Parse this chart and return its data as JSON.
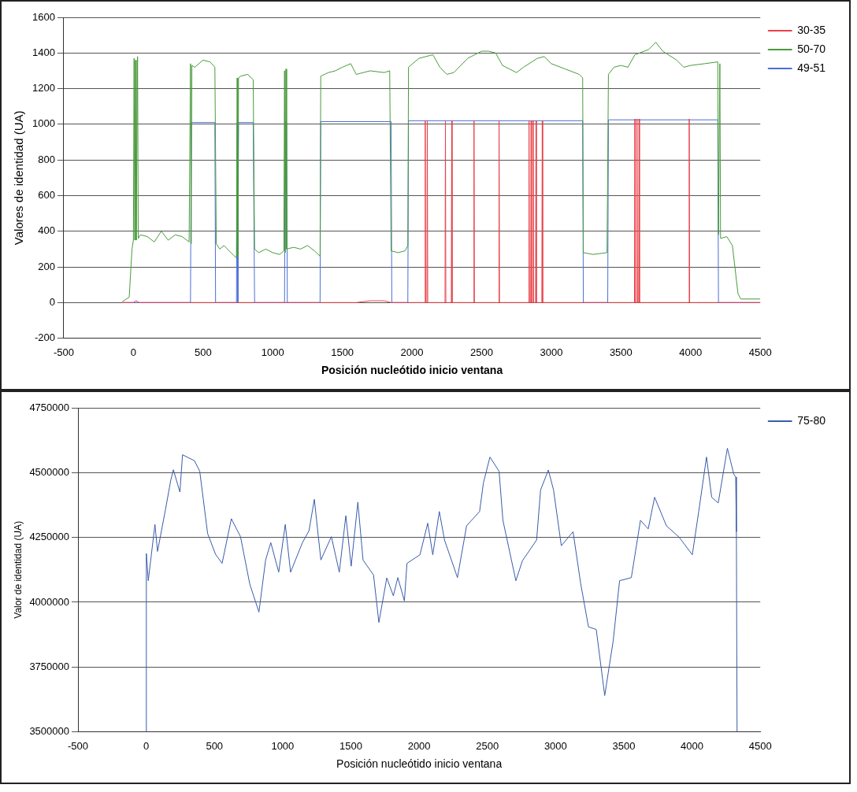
{
  "chart_data": [
    {
      "type": "line",
      "xlabel": "Posición nucleótido inicio ventana",
      "ylabel": "Valores de identidad (UA)",
      "xlim": [
        -500,
        4500
      ],
      "xticks": [
        -500,
        0,
        500,
        1000,
        1500,
        2000,
        2500,
        3000,
        3500,
        4000,
        4500
      ],
      "ylim": [
        -200,
        1600
      ],
      "yticks": [
        -200,
        0,
        200,
        400,
        600,
        800,
        1000,
        1200,
        1400,
        1600
      ],
      "grid": "y",
      "legend": "top right",
      "marker": "none",
      "line_style": "solid",
      "series": [
        {
          "name": "30-35",
          "color": "#e8424a",
          "x": [
            -80,
            0,
            20,
            40,
            1600,
            1700,
            1800,
            1850,
            2092,
            2095,
            2098,
            2107,
            2110,
            2113,
            2237,
            2240,
            2243,
            2282,
            2285,
            2288,
            2442,
            2445,
            2448,
            2622,
            2625,
            2628,
            2837,
            2840,
            2843,
            2852,
            2855,
            2858,
            2867,
            2870,
            2873,
            2887,
            2890,
            2893,
            2932,
            2935,
            2938,
            3597,
            3600,
            3603,
            3612,
            3615,
            3618,
            3627,
            3630,
            3633,
            3987,
            3990,
            3993,
            4500
          ],
          "values": [
            0,
            0,
            10,
            0,
            0,
            10,
            10,
            0,
            0,
            1020,
            0,
            0,
            1020,
            0,
            0,
            1020,
            0,
            0,
            1020,
            0,
            0,
            1020,
            0,
            0,
            1020,
            0,
            0,
            1020,
            0,
            0,
            1020,
            0,
            0,
            1020,
            0,
            0,
            1020,
            0,
            0,
            1020,
            0,
            0,
            1030,
            0,
            0,
            1030,
            0,
            0,
            1030,
            0,
            0,
            1030,
            0,
            0
          ]
        },
        {
          "name": "50-70",
          "color": "#4a9a3c",
          "x": [
            -80,
            -30,
            -10,
            0,
            5,
            10,
            15,
            20,
            30,
            35,
            50,
            100,
            150,
            200,
            250,
            300,
            350,
            400,
            410,
            415,
            420,
            440,
            500,
            550,
            585,
            595,
            620,
            650,
            700,
            740,
            745,
            750,
            755,
            770,
            820,
            860,
            870,
            900,
            950,
            1000,
            1050,
            1080,
            1085,
            1090,
            1095,
            1100,
            1150,
            1200,
            1250,
            1300,
            1340,
            1345,
            1400,
            1450,
            1500,
            1560,
            1600,
            1700,
            1800,
            1840,
            1850,
            1900,
            1950,
            1970,
            1975,
            2050,
            2150,
            2200,
            2250,
            2300,
            2400,
            2500,
            2550,
            2600,
            2650,
            2700,
            2750,
            2800,
            2900,
            2950,
            3000,
            3100,
            3200,
            3225,
            3230,
            3300,
            3400,
            3410,
            3450,
            3500,
            3550,
            3600,
            3700,
            3750,
            3800,
            3900,
            3950,
            4000,
            4100,
            4195,
            4200,
            4210,
            4215,
            4260,
            4300,
            4340,
            4360,
            4500
          ],
          "values": [
            5,
            30,
            300,
            350,
            1370,
            350,
            1360,
            350,
            1380,
            360,
            380,
            370,
            340,
            400,
            350,
            380,
            370,
            340,
            1340,
            330,
            1330,
            1320,
            1360,
            1350,
            1320,
            330,
            300,
            320,
            280,
            250,
            1260,
            260,
            1260,
            1270,
            1280,
            1250,
            300,
            280,
            300,
            280,
            270,
            290,
            1300,
            280,
            1310,
            300,
            310,
            300,
            320,
            290,
            260,
            1270,
            1290,
            1300,
            1320,
            1340,
            1280,
            1300,
            1290,
            1300,
            290,
            280,
            290,
            320,
            1320,
            1370,
            1390,
            1320,
            1280,
            1290,
            1370,
            1410,
            1410,
            1400,
            1330,
            1310,
            1290,
            1320,
            1370,
            1380,
            1340,
            1310,
            1280,
            1260,
            280,
            270,
            280,
            1280,
            1320,
            1330,
            1320,
            1390,
            1420,
            1460,
            1410,
            1360,
            1320,
            1330,
            1340,
            1350,
            380,
            1340,
            360,
            370,
            320,
            50,
            20,
            20
          ]
        },
        {
          "name": "49-51",
          "color": "#4a6fd8",
          "x": [
            -80,
            410,
            415,
            585,
            590,
            740,
            745,
            750,
            755,
            860,
            870,
            1085,
            1090,
            1100,
            1105,
            1340,
            1345,
            1850,
            1855,
            1970,
            1975,
            3225,
            3230,
            3405,
            3410,
            4195,
            4200,
            4500
          ],
          "values": [
            0,
            0,
            1010,
            1010,
            0,
            0,
            1010,
            0,
            1010,
            1010,
            0,
            0,
            1010,
            1010,
            0,
            0,
            1015,
            1015,
            0,
            0,
            1020,
            1020,
            0,
            0,
            1025,
            1025,
            0,
            0
          ]
        }
      ]
    },
    {
      "type": "line",
      "xlabel": "Posición nucleótido inicio ventana",
      "ylabel": "Valor de identidad (UA)",
      "xlim": [
        -500,
        4500
      ],
      "xticks": [
        -500,
        0,
        500,
        1000,
        1500,
        2000,
        2500,
        3000,
        3500,
        4000,
        4500
      ],
      "ylim": [
        3500000,
        4750000
      ],
      "yticks": [
        3500000,
        3750000,
        4000000,
        4250000,
        4500000,
        4750000
      ],
      "grid": "y",
      "legend": "top right",
      "marker": "none",
      "line_style": "solid",
      "series": [
        {
          "name": "75-80",
          "color": "#3a5ca8",
          "x": [
            0,
            1,
            15,
            64,
            83,
            141,
            180,
            199,
            247,
            266,
            353,
            392,
            450,
            508,
            556,
            624,
            691,
            759,
            826,
            875,
            913,
            971,
            1019,
            1058,
            1145,
            1193,
            1232,
            1280,
            1357,
            1415,
            1463,
            1502,
            1551,
            1589,
            1666,
            1705,
            1763,
            1811,
            1844,
            1892,
            1911,
            2006,
            2063,
            2100,
            2148,
            2186,
            2281,
            2348,
            2443,
            2471,
            2519,
            2586,
            2614,
            2709,
            2757,
            2861,
            2890,
            2947,
            2985,
            3042,
            3128,
            3184,
            3241,
            3298,
            3360,
            3422,
            3469,
            3555,
            3622,
            3679,
            3726,
            3812,
            3907,
            4002,
            4049,
            4106,
            4144,
            4192,
            4259,
            4306,
            4320,
            4325,
            4330
          ],
          "values": [
            3500000,
            4188000,
            4083000,
            4300000,
            4196000,
            4357000,
            4471000,
            4511000,
            4425000,
            4569000,
            4546000,
            4506000,
            4265000,
            4185000,
            4150000,
            4322000,
            4253000,
            4070000,
            3962000,
            4163000,
            4230000,
            4116000,
            4300000,
            4116000,
            4230000,
            4276000,
            4397000,
            4163000,
            4253000,
            4116000,
            4334000,
            4139000,
            4386000,
            4163000,
            4105000,
            3922000,
            4094000,
            4025000,
            4095000,
            4005000,
            4150000,
            4183000,
            4305000,
            4183000,
            4350000,
            4240000,
            4095000,
            4295000,
            4350000,
            4460000,
            4560000,
            4505000,
            4316000,
            4083000,
            4160000,
            4240000,
            4433000,
            4510000,
            4433000,
            4218000,
            4272000,
            4072000,
            3905000,
            3895000,
            3640000,
            3850000,
            4083000,
            4095000,
            4316000,
            4283000,
            4405000,
            4295000,
            4250000,
            4183000,
            4350000,
            4560000,
            4405000,
            4383000,
            4594000,
            4494000,
            4483000,
            4272000,
            3500000
          ]
        }
      ]
    }
  ]
}
